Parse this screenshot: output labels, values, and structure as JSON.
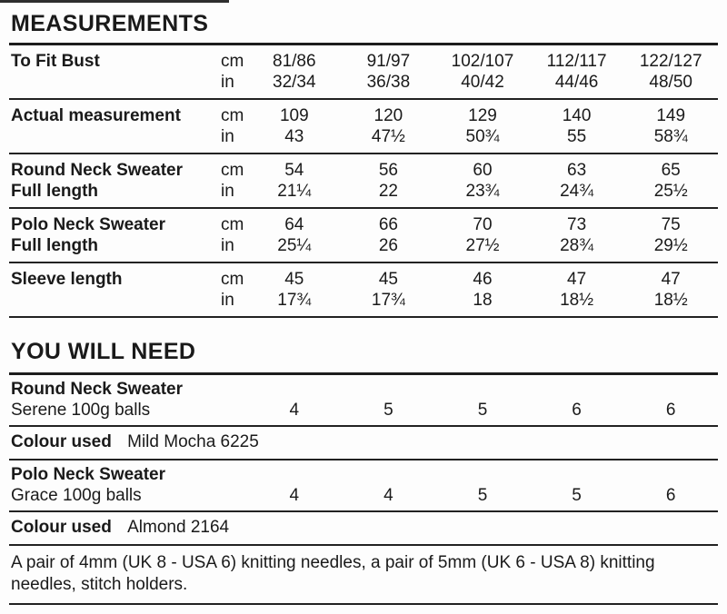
{
  "measurements": {
    "title": "MEASUREMENTS",
    "rows": [
      {
        "label_line1": "To Fit Bust",
        "label_line2": "",
        "cm": {
          "unit": "cm",
          "values": [
            "81/86",
            "91/97",
            "102/107",
            "112/117",
            "122/127"
          ]
        },
        "in": {
          "unit": "in",
          "values": [
            "32/34",
            "36/38",
            "40/42",
            "44/46",
            "48/50"
          ]
        }
      },
      {
        "label_line1": "Actual measurement",
        "label_line2": "",
        "cm": {
          "unit": "cm",
          "values": [
            "109",
            "120",
            "129",
            "140",
            "149"
          ]
        },
        "in": {
          "unit": "in",
          "values": [
            "43",
            "47½",
            "50¾",
            "55",
            "58¾"
          ]
        }
      },
      {
        "label_line1": "Round Neck Sweater",
        "label_line2": "Full length",
        "cm": {
          "unit": "cm",
          "values": [
            "54",
            "56",
            "60",
            "63",
            "65"
          ]
        },
        "in": {
          "unit": "in",
          "values": [
            "21¼",
            "22",
            "23¾",
            "24¾",
            "25½"
          ]
        }
      },
      {
        "label_line1": "Polo Neck Sweater",
        "label_line2": "Full length",
        "cm": {
          "unit": "cm",
          "values": [
            "64",
            "66",
            "70",
            "73",
            "75"
          ]
        },
        "in": {
          "unit": "in",
          "values": [
            "25¼",
            "26",
            "27½",
            "28¾",
            "29½"
          ]
        }
      },
      {
        "label_line1": "Sleeve length",
        "label_line2": "",
        "cm": {
          "unit": "cm",
          "values": [
            "45",
            "45",
            "46",
            "47",
            "47"
          ]
        },
        "in": {
          "unit": "in",
          "values": [
            "17¾",
            "17¾",
            "18",
            "18½",
            "18½"
          ]
        }
      }
    ]
  },
  "you_will_need": {
    "title": "YOU WILL NEED",
    "yarns": [
      {
        "garment": "Round Neck Sweater",
        "yarn_label": "Serene 100g balls",
        "balls": [
          "4",
          "5",
          "5",
          "6",
          "6"
        ],
        "colour_label": "Colour used",
        "colour_value": "Mild Mocha 6225"
      },
      {
        "garment": "Polo Neck Sweater",
        "yarn_label": "Grace 100g balls",
        "balls": [
          "4",
          "4",
          "5",
          "5",
          "6"
        ],
        "colour_label": "Colour used",
        "colour_value": "Almond 2164"
      }
    ],
    "needles_note": "A pair of 4mm (UK 8 - USA 6) knitting needles, a pair of 5mm (UK 6 - USA 8) knitting needles, stitch holders."
  }
}
